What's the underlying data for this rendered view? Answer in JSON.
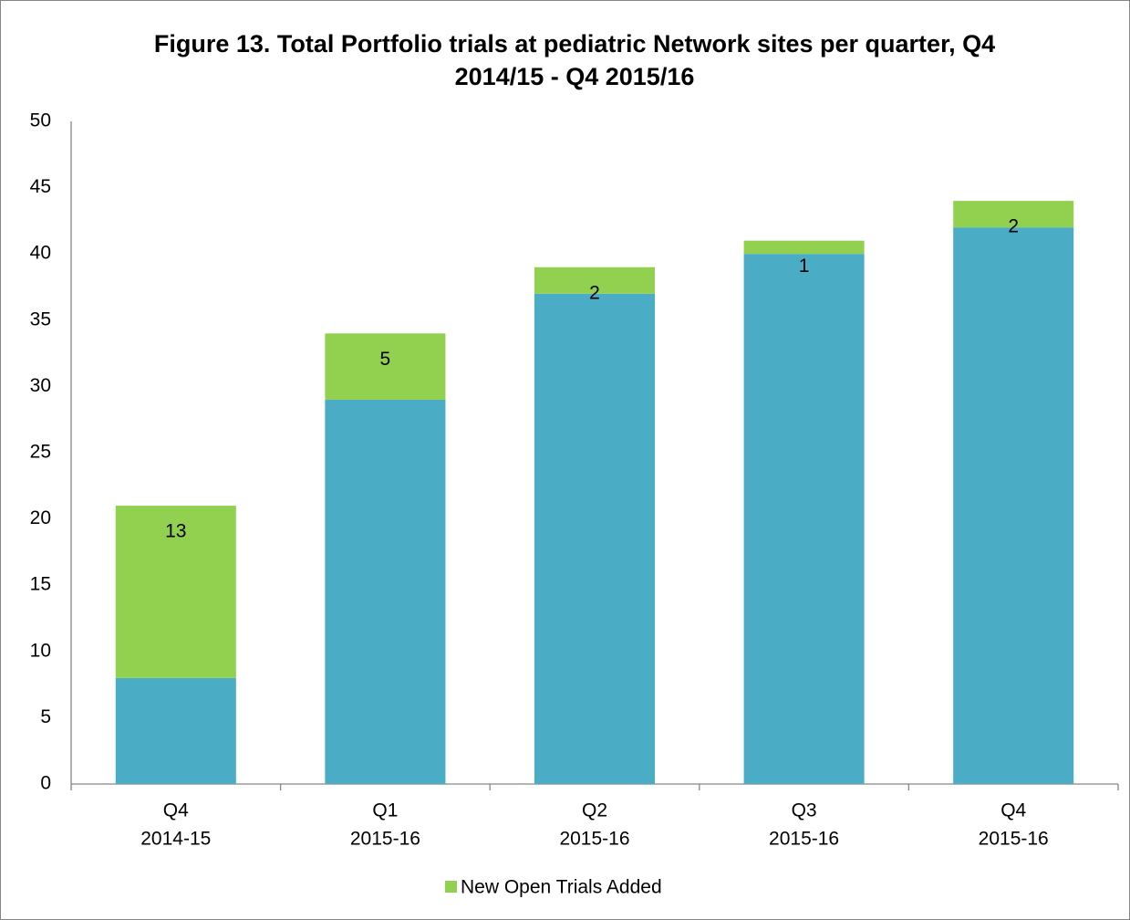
{
  "chart_data": {
    "type": "stacked_bar",
    "title": "Figure 13. Total Portfolio trials at pediatric Network sites per quarter, Q4 2014/15 - Q4 2015/16",
    "categories": [
      [
        "Q4",
        "2014-15"
      ],
      [
        "Q1",
        "2015-16"
      ],
      [
        "Q2",
        "2015-16"
      ],
      [
        "Q3",
        "2015-16"
      ],
      [
        "Q4",
        "2015-16"
      ]
    ],
    "series": [
      {
        "color": "#4bacc6",
        "values": [
          8,
          29,
          37,
          40,
          42
        ]
      },
      {
        "name": "New Open Trials Added",
        "color": "#92d050",
        "values": [
          13,
          5,
          2,
          1,
          2
        ],
        "data_labels": true
      }
    ],
    "ylim": [
      0,
      50
    ],
    "yticks": [
      0,
      5,
      10,
      15,
      20,
      25,
      30,
      35,
      40,
      45,
      50
    ],
    "grid": false,
    "legend": "bottom"
  }
}
